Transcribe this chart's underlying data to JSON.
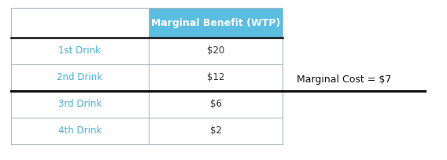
{
  "rows": [
    "1st Drink",
    "2nd Drink",
    "3rd Drink",
    "4th Drink"
  ],
  "values": [
    "$20",
    "$12",
    "$6",
    "$2"
  ],
  "header": "Marginal Benefit (WTP)",
  "header_bg": "#5bbde0",
  "header_text_color": "#ffffff",
  "row_text_color": "#4ab0d9",
  "value_text_color": "#333333",
  "table_border_color": "#b0b8c0",
  "thick_line_color": "#111111",
  "thick_line_after_row": 1,
  "marginal_cost_label": "Marginal Cost = $7",
  "bg_color": "#ffffff",
  "fig_width": 5.68,
  "fig_height": 2.04,
  "dpi": 100
}
